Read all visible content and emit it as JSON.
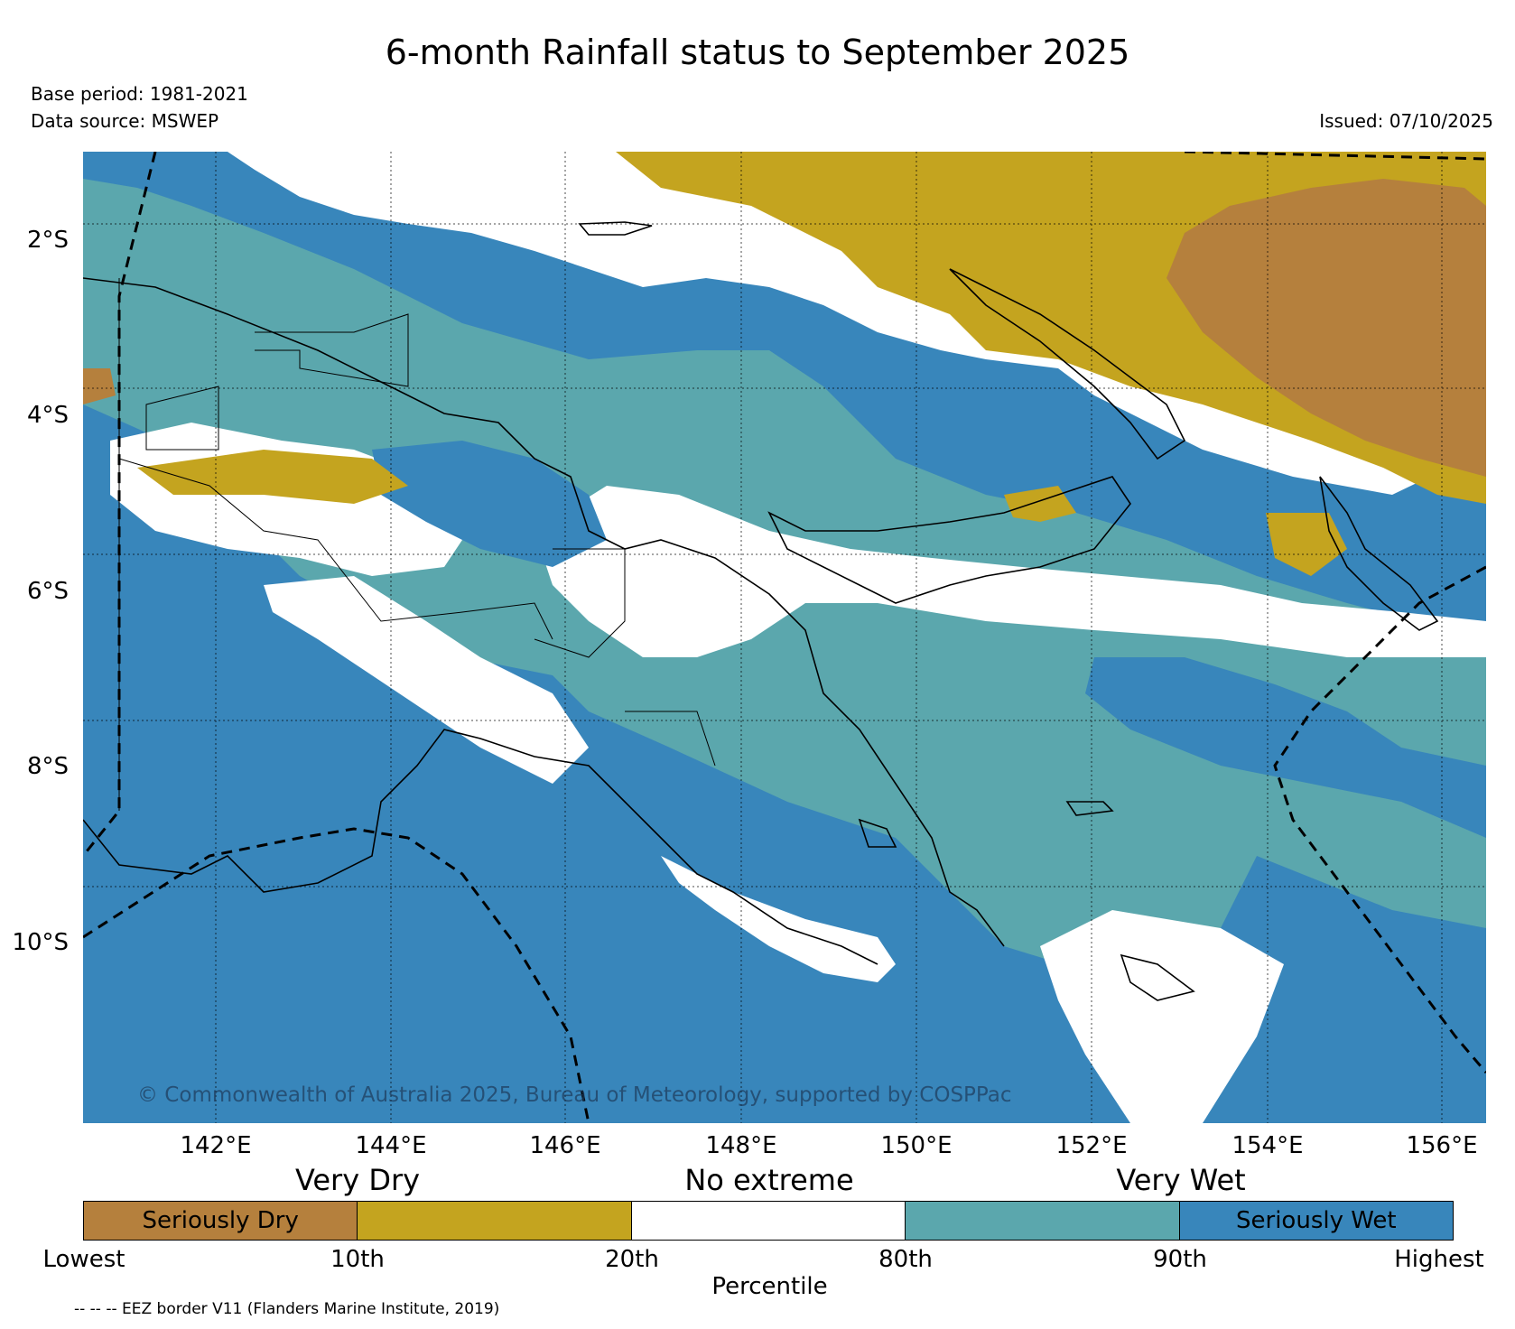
{
  "title": "6-month Rainfall status to September 2025",
  "meta": {
    "base_period": "Base period: 1981-2021",
    "data_source": "Data source: MSWEP",
    "issued": "Issued: 07/10/2025"
  },
  "map": {
    "lat_ticks": [
      "2°S",
      "4°S",
      "6°S",
      "8°S",
      "10°S"
    ],
    "lon_ticks": [
      "142°E",
      "144°E",
      "146°E",
      "148°E",
      "150°E",
      "152°E",
      "154°E",
      "156°E"
    ],
    "copyright": "© Commonwealth of Australia 2025, Bureau of Meteorology, supported by COSPPac",
    "colors": {
      "seriously_dry": "#b5803d",
      "very_dry": "#c4a41f",
      "no_extreme": "#ffffff",
      "very_wet": "#5ba7ad",
      "seriously_wet": "#3886bb"
    }
  },
  "legend": {
    "categories": {
      "very_dry": "Very Dry",
      "no_extreme": "No extreme",
      "very_wet": "Very Wet"
    },
    "segments": [
      {
        "label": "Seriously Dry",
        "color": "#b5803d"
      },
      {
        "label": "",
        "color": "#c4a41f"
      },
      {
        "label": "",
        "color": "#ffffff"
      },
      {
        "label": "",
        "color": "#5ba7ad"
      },
      {
        "label": "Seriously Wet",
        "color": "#3886bb"
      }
    ],
    "percentile_ticks": [
      "Lowest",
      "10th",
      "20th",
      "80th",
      "90th",
      "Highest"
    ],
    "percentile_label": "Percentile"
  },
  "footnote": "-- -- -- EEZ border V11 (Flanders Marine Institute, 2019)"
}
